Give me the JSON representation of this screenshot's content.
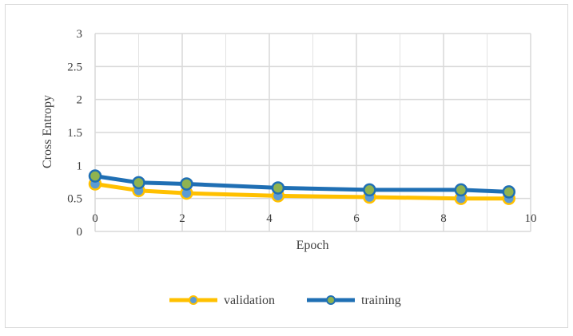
{
  "chart_data": {
    "type": "line",
    "title": "",
    "xlabel": "Epoch",
    "ylabel": "Cross Entropy",
    "xlim": [
      0,
      10
    ],
    "ylim": [
      0,
      3
    ],
    "x_ticks": [
      "0",
      "2",
      "4",
      "6",
      "8",
      "10"
    ],
    "y_ticks": [
      "0",
      "0.5",
      "1",
      "1.5",
      "2",
      "2.5",
      "3"
    ],
    "grid": true,
    "legend_position": "bottom",
    "series": [
      {
        "name": "validation",
        "color": "#FFC000",
        "marker_color": "#5B9BD5",
        "x": [
          0,
          1,
          2.1,
          4.2,
          6.3,
          8.4,
          9.5
        ],
        "y": [
          0.72,
          0.62,
          0.58,
          0.54,
          0.52,
          0.5,
          0.5
        ]
      },
      {
        "name": "training",
        "color": "#1F6FB4",
        "marker_color": "#8FB350",
        "x": [
          0,
          1,
          2.1,
          4.2,
          6.3,
          8.4,
          9.5
        ],
        "y": [
          0.84,
          0.74,
          0.72,
          0.66,
          0.63,
          0.63,
          0.6
        ]
      }
    ]
  }
}
